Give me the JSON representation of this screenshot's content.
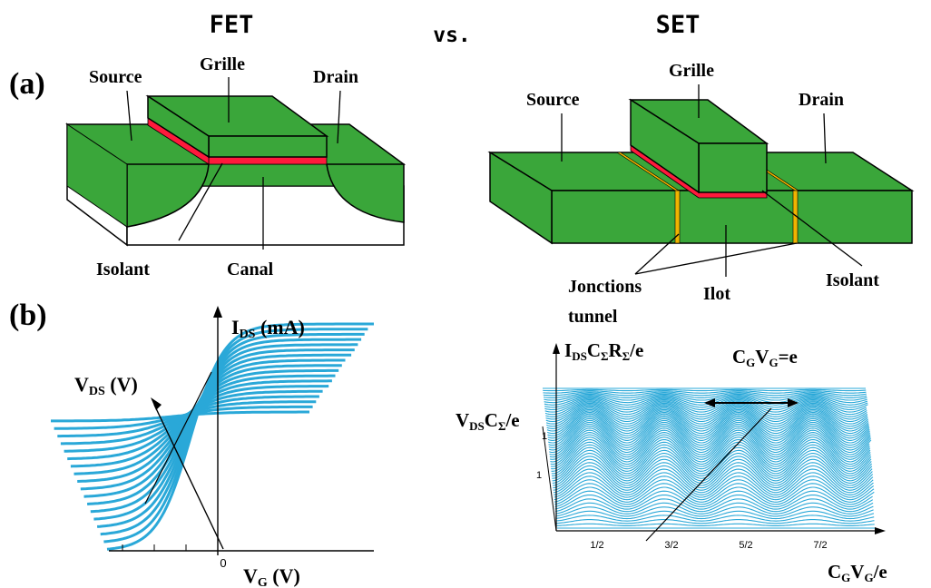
{
  "titles": {
    "fet": "FET",
    "vs": "vs.",
    "set": "SET"
  },
  "panels": {
    "a": "(a)",
    "b": "(b)"
  },
  "fet_device": {
    "source": "Source",
    "gate": "Grille",
    "drain": "Drain",
    "insulator": "Isolant",
    "channel": "Canal"
  },
  "set_device": {
    "source": "Source",
    "gate": "Grille",
    "drain": "Drain",
    "insulator": "Isolant",
    "island": "Ilot",
    "junctions_line1": "Jonctions",
    "junctions_line2": "tunnel"
  },
  "fet_plot": {
    "y_axis_label": {
      "main": "I",
      "sub": "DS",
      "unit": " (mA)"
    },
    "depth_axis_label": {
      "main": "V",
      "sub": "DS",
      "unit": " (V)"
    },
    "x_axis_label": {
      "main": "V",
      "sub": "G",
      "unit": " (V)"
    },
    "zero_tick": "0"
  },
  "set_plot": {
    "y_axis_label": "I_DS C_Σ R_Σ / e",
    "y_axis_label_parts": [
      "I",
      "DS",
      "C",
      "Σ",
      "R",
      "Σ",
      "/e"
    ],
    "depth_axis_label_parts": [
      "V",
      "DS",
      "C",
      "Σ",
      "/e"
    ],
    "x_axis_label_parts": [
      "C",
      "G",
      "V",
      "G",
      "/e"
    ],
    "period_label_parts": [
      "C",
      "G",
      "V",
      "G",
      "=e"
    ],
    "x_ticks": [
      "1/2",
      "3/2",
      "5/2",
      "7/2"
    ],
    "y_ticks": [
      "1",
      "1"
    ]
  },
  "colors": {
    "device_green": "#3aa63a",
    "gate_oxide": "#ff1a3c",
    "tunnel_junction": "#f0b400",
    "curves": "#2aa8d8"
  }
}
